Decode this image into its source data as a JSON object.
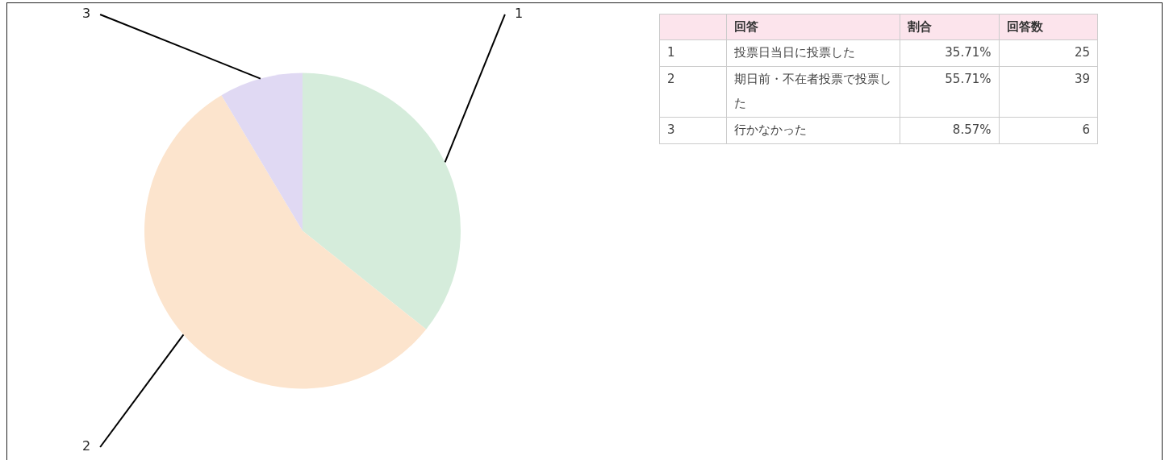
{
  "chart_data": {
    "type": "pie",
    "categories": [
      "1",
      "2",
      "3"
    ],
    "values": [
      35.71,
      55.71,
      8.57
    ],
    "colors": [
      "#d5ecdb",
      "#fce4cd",
      "#e0d9f3"
    ],
    "annotations": [
      "回答",
      "割合",
      "回答数",
      "投票日当日に投票した",
      "期日前・不在者投票で投票した",
      "行かなかった",
      "35.71%",
      "55.71%",
      "8.57%",
      "25",
      "39",
      "6"
    ],
    "legend": false
  }
}
